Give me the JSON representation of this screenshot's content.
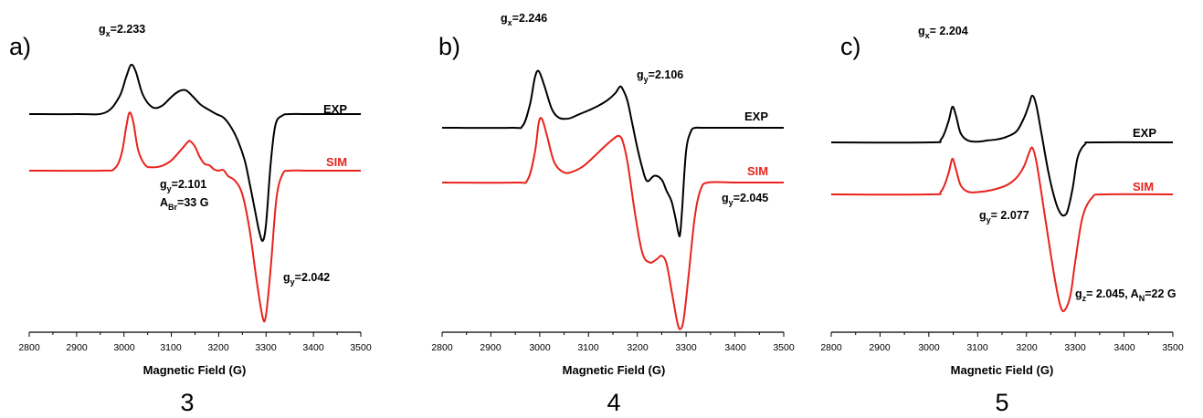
{
  "colors": {
    "exp": "#000000",
    "sim": "#e8231c",
    "axis": "#000000"
  },
  "chart_data": [
    {
      "type": "line",
      "panel_letter": "a)",
      "compound_label": "3",
      "xlabel": "Magnetic Field (G)",
      "ylabel": "",
      "xlim": [
        2800,
        3500
      ],
      "xticks": [
        "2800",
        "2900",
        "3000",
        "3100",
        "3200",
        "3300",
        "3400",
        "3500"
      ],
      "grid": false,
      "series": [
        {
          "name": "EXP",
          "color": "#000000",
          "x": [
            2800,
            2900,
            2960,
            2990,
            3005,
            3015,
            3025,
            3040,
            3060,
            3080,
            3100,
            3115,
            3130,
            3145,
            3160,
            3170,
            3180,
            3195,
            3210,
            3225,
            3240,
            3255,
            3265,
            3275,
            3285,
            3293,
            3300,
            3310,
            3320,
            3335,
            3350,
            3400,
            3500
          ],
          "y": [
            0,
            0,
            0.02,
            0.25,
            0.55,
            0.72,
            0.62,
            0.28,
            0.1,
            0.12,
            0.25,
            0.33,
            0.35,
            0.26,
            0.15,
            0.1,
            0.06,
            0.0,
            -0.05,
            -0.18,
            -0.38,
            -0.68,
            -1.0,
            -1.35,
            -1.7,
            -1.85,
            -1.6,
            -0.7,
            -0.15,
            -0.02,
            0,
            0,
            0
          ]
        },
        {
          "name": "SIM",
          "color": "#e8231c",
          "x": [
            2800,
            2950,
            2980,
            2995,
            3005,
            3012,
            3020,
            3030,
            3045,
            3060,
            3080,
            3100,
            3120,
            3135,
            3140,
            3150,
            3160,
            3170,
            3180,
            3190,
            3200,
            3210,
            3220,
            3235,
            3250,
            3265,
            3280,
            3293,
            3300,
            3310,
            3322,
            3335,
            3350,
            3400,
            3500
          ],
          "y": [
            0,
            0,
            0.03,
            0.25,
            0.65,
            0.85,
            0.7,
            0.3,
            0.08,
            0.05,
            0.07,
            0.15,
            0.3,
            0.42,
            0.43,
            0.35,
            0.2,
            0.1,
            0.08,
            0.02,
            0.0,
            0.01,
            -0.08,
            -0.15,
            -0.35,
            -0.85,
            -1.6,
            -2.15,
            -2.1,
            -1.4,
            -0.4,
            -0.05,
            0,
            0,
            0
          ]
        }
      ],
      "annotations": [
        {
          "main": "g",
          "sub": "x",
          "rest": "=2.233"
        },
        {
          "main": "g",
          "sub": "y",
          "rest": "=2.101"
        },
        {
          "main": "A",
          "sub": "Br",
          "rest": "=33 G"
        },
        {
          "main": "g",
          "sub": "y",
          "rest": "=2.042"
        }
      ]
    },
    {
      "type": "line",
      "panel_letter": "b)",
      "compound_label": "4",
      "xlabel": "Magnetic Field (G)",
      "ylabel": "",
      "xlim": [
        2800,
        3500
      ],
      "xticks": [
        "2800",
        "2900",
        "3000",
        "3100",
        "3200",
        "3300",
        "3400",
        "3500"
      ],
      "grid": false,
      "series": [
        {
          "name": "EXP",
          "color": "#000000",
          "x": [
            2800,
            2940,
            2965,
            2980,
            2990,
            2998,
            3010,
            3025,
            3040,
            3060,
            3080,
            3100,
            3120,
            3140,
            3155,
            3165,
            3172,
            3180,
            3190,
            3200,
            3210,
            3220,
            3235,
            3250,
            3260,
            3270,
            3278,
            3285,
            3288,
            3292,
            3300,
            3310,
            3320,
            3340,
            3500
          ],
          "y": [
            0,
            0,
            0.03,
            0.35,
            0.75,
            0.85,
            0.62,
            0.28,
            0.15,
            0.14,
            0.2,
            0.26,
            0.33,
            0.42,
            0.52,
            0.62,
            0.55,
            0.4,
            0.05,
            -0.3,
            -0.6,
            -0.8,
            -0.72,
            -0.78,
            -0.95,
            -1.1,
            -1.35,
            -1.6,
            -1.58,
            -1.2,
            -0.35,
            -0.05,
            0,
            0,
            0
          ]
        },
        {
          "name": "SIM",
          "color": "#e8231c",
          "x": [
            2800,
            2950,
            2975,
            2990,
            2998,
            3005,
            3015,
            3030,
            3050,
            3070,
            3090,
            3110,
            3130,
            3150,
            3162,
            3170,
            3180,
            3195,
            3210,
            3225,
            3240,
            3250,
            3260,
            3272,
            3282,
            3288,
            3295,
            3305,
            3318,
            3330,
            3345,
            3400,
            3500
          ],
          "y": [
            0,
            0,
            0.04,
            0.45,
            0.9,
            0.95,
            0.7,
            0.3,
            0.15,
            0.17,
            0.25,
            0.38,
            0.52,
            0.65,
            0.7,
            0.62,
            0.3,
            -0.45,
            -1.05,
            -1.2,
            -1.15,
            -1.1,
            -1.22,
            -1.7,
            -2.1,
            -2.2,
            -2.05,
            -1.4,
            -0.5,
            -0.1,
            0,
            0,
            0
          ]
        }
      ],
      "annotations": [
        {
          "main": "g",
          "sub": "x",
          "rest": "=2.246"
        },
        {
          "main": "g",
          "sub": "y",
          "rest": "=2.106"
        },
        {
          "main": "g",
          "sub": "y",
          "rest": "=2.045"
        }
      ]
    },
    {
      "type": "line",
      "panel_letter": "c)",
      "compound_label": "5",
      "xlabel": "Magnetic Field (G)",
      "ylabel": "",
      "xlim": [
        2800,
        3500
      ],
      "xticks": [
        "2800",
        "2900",
        "3000",
        "3100",
        "3200",
        "3300",
        "3400",
        "3500"
      ],
      "grid": false,
      "series": [
        {
          "name": "EXP",
          "color": "#000000",
          "x": [
            2800,
            3000,
            3025,
            3040,
            3048,
            3055,
            3065,
            3080,
            3100,
            3120,
            3140,
            3160,
            3180,
            3195,
            3205,
            3212,
            3220,
            3230,
            3245,
            3260,
            3270,
            3278,
            3285,
            3295,
            3305,
            3320,
            3340,
            3500
          ],
          "y": [
            0,
            0,
            0.08,
            0.55,
            0.95,
            0.75,
            0.25,
            0.05,
            0.02,
            0.05,
            0.08,
            0.15,
            0.3,
            0.65,
            1.0,
            1.25,
            1.0,
            0.3,
            -0.8,
            -1.6,
            -1.9,
            -1.95,
            -1.8,
            -1.2,
            -0.4,
            -0.05,
            0,
            0
          ]
        },
        {
          "name": "SIM",
          "color": "#e8231c",
          "x": [
            2800,
            3000,
            3025,
            3040,
            3048,
            3055,
            3065,
            3080,
            3100,
            3130,
            3160,
            3180,
            3195,
            3205,
            3212,
            3220,
            3230,
            3245,
            3260,
            3270,
            3278,
            3290,
            3300,
            3315,
            3335,
            3360,
            3500
          ],
          "y": [
            0,
            0,
            0.08,
            0.55,
            0.95,
            0.7,
            0.25,
            0.07,
            0.06,
            0.12,
            0.25,
            0.45,
            0.75,
            1.1,
            1.25,
            0.9,
            0.1,
            -1.2,
            -2.4,
            -3.0,
            -3.1,
            -2.7,
            -1.8,
            -0.6,
            -0.08,
            0,
            0
          ]
        }
      ],
      "annotations": [
        {
          "main": "g",
          "sub": "x",
          "rest": "= 2.204"
        },
        {
          "main": "g",
          "sub": "y",
          "rest": "= 2.077"
        },
        {
          "main": "g",
          "sub": "z",
          "rest": "= 2.045, A",
          "sub2": "N",
          "rest2": "=22 G"
        }
      ]
    }
  ]
}
